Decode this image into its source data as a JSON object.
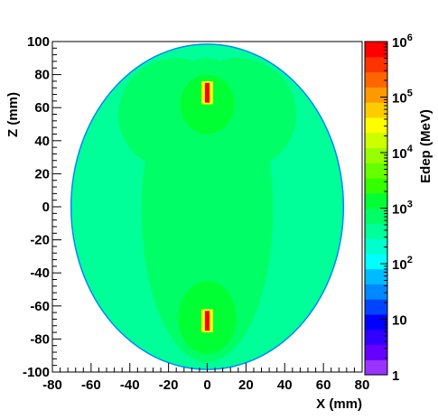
{
  "chart_data": {
    "type": "heatmap",
    "title": "",
    "xlabel": "X (mm)",
    "ylabel": "Z (mm)",
    "zlabel": "Edep (MeV)",
    "xlim": [
      -80,
      80
    ],
    "ylim": [
      -100,
      100
    ],
    "zlim": [
      1,
      1000000
    ],
    "z_scale": "log",
    "x_ticks": [
      "-80",
      "-60",
      "-40",
      "-20",
      "0",
      "20",
      "40",
      "60",
      "80"
    ],
    "y_ticks": [
      "-100",
      "-80",
      "-60",
      "-40",
      "-20",
      "0",
      "20",
      "40",
      "60",
      "80",
      "100"
    ],
    "z_ticks": [
      {
        "value": 1,
        "label": "1"
      },
      {
        "value": 10,
        "label": "10"
      },
      {
        "value": 100,
        "label": "10",
        "exp": "2"
      },
      {
        "value": 1000,
        "label": "10",
        "exp": "3"
      },
      {
        "value": 10000,
        "label": "10",
        "exp": "4"
      },
      {
        "value": 100000,
        "label": "10",
        "exp": "5"
      },
      {
        "value": 1000000,
        "label": "10",
        "exp": "6"
      }
    ],
    "palette": [
      "#9933ff",
      "#6600ff",
      "#3300ff",
      "#0000ff",
      "#0044ff",
      "#0088ff",
      "#00bbff",
      "#00ffff",
      "#00ffcc",
      "#00ff99",
      "#00ff66",
      "#00ff33",
      "#33ff00",
      "#66ff00",
      "#99ff00",
      "#ccff00",
      "#ffff00",
      "#ffcc00",
      "#ff9900",
      "#ff6600",
      "#ff3300",
      "#ff0000"
    ],
    "regions": [
      {
        "name": "phantom-body",
        "shape": "ellipse",
        "cx": 0,
        "cz": 0,
        "rx": 70,
        "rz": 98,
        "edep": 300
      },
      {
        "name": "body-core",
        "shape": "ellipse",
        "cx": 0,
        "cz": -2,
        "rx": 34,
        "rz": 92,
        "edep": 600
      },
      {
        "name": "upper-lobe-left",
        "shape": "ellipse",
        "cx": -16,
        "cz": 56,
        "rx": 30,
        "rz": 34,
        "edep": 600
      },
      {
        "name": "upper-lobe-right",
        "shape": "ellipse",
        "cx": 16,
        "cz": 56,
        "rx": 30,
        "rz": 34,
        "edep": 600
      },
      {
        "name": "upper-halo",
        "shape": "ellipse",
        "cx": 0,
        "cz": 62,
        "rx": 14,
        "rz": 18,
        "edep": 1200
      },
      {
        "name": "lower-halo",
        "shape": "ellipse",
        "cx": 0,
        "cz": -67,
        "rx": 15,
        "rz": 22,
        "edep": 1200
      },
      {
        "name": "upper-source-halo",
        "shape": "rect",
        "x0": -3,
        "x1": 3,
        "z0": 62,
        "z1": 76,
        "edep": 30000
      },
      {
        "name": "upper-source",
        "shape": "rect",
        "x0": -1.2,
        "x1": 1.2,
        "z0": 63,
        "z1": 75,
        "edep": 900000
      },
      {
        "name": "lower-source-halo",
        "shape": "rect",
        "x0": -3,
        "x1": 3,
        "z0": -76,
        "z1": -62,
        "edep": 30000
      },
      {
        "name": "lower-source",
        "shape": "rect",
        "x0": -1.2,
        "x1": 1.2,
        "z0": -75,
        "z1": -63,
        "edep": 900000
      }
    ]
  }
}
